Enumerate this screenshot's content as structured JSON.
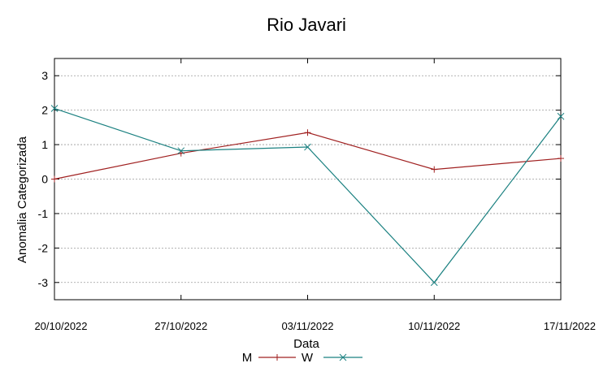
{
  "chart_data": {
    "type": "line",
    "title": "Rio Javari",
    "xlabel": "Data",
    "ylabel": "Anomalia Categorizada",
    "categories": [
      "20/10/2022",
      "27/10/2022",
      "03/11/2022",
      "10/11/2022",
      "17/11/2022"
    ],
    "yticks": [
      "3",
      "2",
      "1",
      "0",
      "-1",
      "-2",
      "-3"
    ],
    "ylim": [
      -3.5,
      3.5
    ],
    "grid": true,
    "series": [
      {
        "name": "M",
        "color": "#a02020",
        "marker": "+",
        "values": [
          0.0,
          0.75,
          1.35,
          0.28,
          0.6
        ]
      },
      {
        "name": "W",
        "color": "#1a8080",
        "marker": "x",
        "values": [
          2.05,
          0.82,
          0.93,
          -3.0,
          1.82
        ]
      }
    ],
    "legend": {
      "placement": "bottom-center",
      "labels": [
        "M",
        "W"
      ]
    }
  }
}
